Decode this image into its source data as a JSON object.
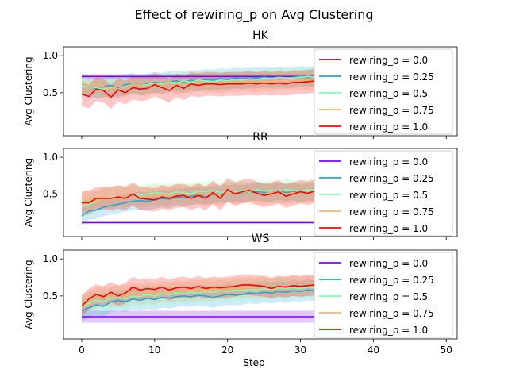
{
  "figure": {
    "title": "Effect of rewiring_p on  Avg Clustering",
    "xlabel": "Step"
  },
  "legend_labels": [
    "rewiring_p = 0.0",
    "rewiring_p = 0.25",
    "rewiring_p = 0.5",
    "rewiring_p = 0.75",
    "rewiring_p = 1.0"
  ],
  "series_colors": [
    "#8000ff",
    "#1ca8e0",
    "#80ffb4",
    "#ffb360",
    "#ff0000"
  ],
  "chart_data": [
    {
      "type": "line",
      "title": "HK",
      "xlabel": "",
      "ylabel": "Avg Clustering",
      "xlim": [
        -2.5,
        51.5
      ],
      "ylim": [
        0.0,
        1.0
      ],
      "xticks": [
        0,
        10,
        20,
        30,
        40,
        50
      ],
      "yticks": [
        0.5,
        1.0
      ],
      "ytick_labels": [
        "0.5",
        "1.0"
      ],
      "legend_position": "right",
      "x": [
        0,
        1,
        2,
        3,
        4,
        5,
        6,
        7,
        8,
        9,
        10,
        11,
        12,
        13,
        14,
        15,
        16,
        17,
        18,
        19,
        20,
        21,
        22,
        23,
        24,
        25,
        26,
        27,
        28,
        29,
        30,
        31,
        32
      ],
      "series": [
        {
          "name": "rewiring_p = 0.0",
          "values": [
            0.72,
            0.72,
            0.72,
            0.72,
            0.72,
            0.72,
            0.72,
            0.72,
            0.72,
            0.72,
            0.72,
            0.72,
            0.72,
            0.72,
            0.72,
            0.72,
            0.72,
            0.72,
            0.72,
            0.72,
            0.72,
            0.72,
            0.72,
            0.72,
            0.72,
            0.72,
            0.72,
            0.72,
            0.72,
            0.72,
            0.72,
            0.72,
            0.72
          ],
          "band": 0.03
        },
        {
          "name": "rewiring_p = 0.25",
          "values": [
            0.62,
            0.58,
            0.56,
            0.58,
            0.6,
            0.57,
            0.61,
            0.63,
            0.6,
            0.62,
            0.64,
            0.63,
            0.65,
            0.66,
            0.64,
            0.67,
            0.66,
            0.68,
            0.67,
            0.69,
            0.68,
            0.7,
            0.69,
            0.7,
            0.7,
            0.71,
            0.7,
            0.71,
            0.7,
            0.71,
            0.72,
            0.71,
            0.72
          ],
          "band": 0.14
        },
        {
          "name": "rewiring_p = 0.5",
          "values": [
            0.6,
            0.58,
            0.57,
            0.55,
            0.57,
            0.59,
            0.58,
            0.62,
            0.6,
            0.61,
            0.63,
            0.62,
            0.65,
            0.63,
            0.66,
            0.64,
            0.67,
            0.66,
            0.65,
            0.67,
            0.66,
            0.68,
            0.67,
            0.69,
            0.68,
            0.7,
            0.69,
            0.71,
            0.7,
            0.7,
            0.71,
            0.72,
            0.71
          ],
          "band": 0.12
        },
        {
          "name": "rewiring_p = 0.75",
          "values": [
            0.62,
            0.6,
            0.63,
            0.58,
            0.55,
            0.59,
            0.57,
            0.62,
            0.6,
            0.58,
            0.62,
            0.6,
            0.64,
            0.61,
            0.63,
            0.62,
            0.65,
            0.63,
            0.64,
            0.62,
            0.65,
            0.64,
            0.66,
            0.65,
            0.64,
            0.66,
            0.65,
            0.67,
            0.66,
            0.68,
            0.67,
            0.66,
            0.68
          ],
          "band": 0.13
        },
        {
          "name": "rewiring_p = 1.0",
          "values": [
            0.48,
            0.45,
            0.55,
            0.53,
            0.44,
            0.54,
            0.5,
            0.57,
            0.55,
            0.56,
            0.61,
            0.57,
            0.53,
            0.6,
            0.56,
            0.62,
            0.6,
            0.62,
            0.62,
            0.61,
            0.62,
            0.62,
            0.62,
            0.63,
            0.62,
            0.63,
            0.62,
            0.63,
            0.62,
            0.64,
            0.64,
            0.65,
            0.66
          ],
          "band": 0.16
        }
      ]
    },
    {
      "type": "line",
      "title": "RR",
      "xlabel": "",
      "ylabel": "Avg Clustering",
      "xlim": [
        -2.5,
        51.5
      ],
      "ylim": [
        0.0,
        1.0
      ],
      "xticks": [
        0,
        10,
        20,
        30,
        40,
        50
      ],
      "yticks": [
        0.5,
        1.0
      ],
      "ytick_labels": [
        "0.5",
        "1.0"
      ],
      "legend_position": "right",
      "x": [
        0,
        1,
        2,
        3,
        4,
        5,
        6,
        7,
        8,
        9,
        10,
        11,
        12,
        13,
        14,
        15,
        16,
        17,
        18,
        19,
        20,
        21,
        22,
        23,
        24,
        25,
        26,
        27,
        28,
        29,
        30,
        31,
        32
      ],
      "series": [
        {
          "name": "rewiring_p = 0.0",
          "values": [
            0.11,
            0.11,
            0.11,
            0.11,
            0.11,
            0.11,
            0.11,
            0.11,
            0.11,
            0.11,
            0.11,
            0.11,
            0.11,
            0.11,
            0.11,
            0.11,
            0.11,
            0.11,
            0.11,
            0.11,
            0.11,
            0.11,
            0.11,
            0.11,
            0.11,
            0.11,
            0.11,
            0.11,
            0.11,
            0.11,
            0.11,
            0.11,
            0.11
          ],
          "band": 0.01
        },
        {
          "name": "rewiring_p = 0.25",
          "values": [
            0.2,
            0.27,
            0.28,
            0.32,
            0.34,
            0.36,
            0.38,
            0.4,
            0.41,
            0.4,
            0.42,
            0.44,
            0.43,
            0.46,
            0.45,
            0.47,
            0.48,
            0.47,
            0.49,
            0.5,
            0.5,
            0.51,
            0.5,
            0.52,
            0.53,
            0.52,
            0.51,
            0.54,
            0.52,
            0.53,
            0.51,
            0.52,
            0.53
          ],
          "band": 0.12
        },
        {
          "name": "rewiring_p = 0.5",
          "values": [
            0.32,
            0.36,
            0.4,
            0.44,
            0.45,
            0.47,
            0.46,
            0.5,
            0.48,
            0.5,
            0.52,
            0.51,
            0.5,
            0.53,
            0.52,
            0.5,
            0.54,
            0.53,
            0.55,
            0.52,
            0.54,
            0.53,
            0.55,
            0.52,
            0.56,
            0.54,
            0.55,
            0.53,
            0.56,
            0.55,
            0.54,
            0.56,
            0.55
          ],
          "band": 0.14
        },
        {
          "name": "rewiring_p = 0.75",
          "values": [
            0.38,
            0.42,
            0.4,
            0.45,
            0.43,
            0.47,
            0.46,
            0.48,
            0.45,
            0.47,
            0.49,
            0.47,
            0.48,
            0.5,
            0.47,
            0.49,
            0.51,
            0.48,
            0.5,
            0.49,
            0.51,
            0.5,
            0.52,
            0.49,
            0.51,
            0.5,
            0.52,
            0.51,
            0.5,
            0.52,
            0.51,
            0.53,
            0.52
          ],
          "band": 0.14
        },
        {
          "name": "rewiring_p = 1.0",
          "values": [
            0.38,
            0.38,
            0.44,
            0.44,
            0.44,
            0.46,
            0.44,
            0.5,
            0.44,
            0.43,
            0.42,
            0.46,
            0.44,
            0.47,
            0.48,
            0.44,
            0.48,
            0.44,
            0.52,
            0.44,
            0.56,
            0.5,
            0.53,
            0.55,
            0.51,
            0.48,
            0.5,
            0.53,
            0.47,
            0.5,
            0.53,
            0.51,
            0.54
          ],
          "band": 0.16
        }
      ]
    },
    {
      "type": "line",
      "title": "WS",
      "xlabel": "Step",
      "ylabel": "Avg Clustering",
      "xlim": [
        -2.5,
        51.5
      ],
      "ylim": [
        0.0,
        1.0
      ],
      "xticks": [
        0,
        10,
        20,
        30,
        40,
        50
      ],
      "xtick_labels": [
        "0",
        "10",
        "20",
        "30",
        "40",
        "50"
      ],
      "yticks": [
        0.5,
        1.0
      ],
      "ytick_labels": [
        "0.5",
        "1.0"
      ],
      "legend_position": "right",
      "x": [
        0,
        1,
        2,
        3,
        4,
        5,
        6,
        7,
        8,
        9,
        10,
        11,
        12,
        13,
        14,
        15,
        16,
        17,
        18,
        19,
        20,
        21,
        22,
        23,
        24,
        25,
        26,
        27,
        28,
        29,
        30,
        31,
        32
      ],
      "series": [
        {
          "name": "rewiring_p = 0.0",
          "values": [
            0.22,
            0.22,
            0.22,
            0.22,
            0.22,
            0.22,
            0.22,
            0.22,
            0.22,
            0.22,
            0.22,
            0.22,
            0.22,
            0.22,
            0.22,
            0.22,
            0.22,
            0.22,
            0.22,
            0.22,
            0.22,
            0.22,
            0.22,
            0.22,
            0.22,
            0.22,
            0.22,
            0.22,
            0.22,
            0.22,
            0.22,
            0.22,
            0.22
          ],
          "band": 0.08
        },
        {
          "name": "rewiring_p = 0.25",
          "values": [
            0.3,
            0.34,
            0.38,
            0.36,
            0.42,
            0.44,
            0.42,
            0.46,
            0.44,
            0.47,
            0.45,
            0.48,
            0.47,
            0.49,
            0.5,
            0.49,
            0.51,
            0.5,
            0.48,
            0.5,
            0.52,
            0.51,
            0.52,
            0.54,
            0.53,
            0.55,
            0.54,
            0.56,
            0.55,
            0.57,
            0.56,
            0.58,
            0.57
          ],
          "band": 0.14
        },
        {
          "name": "rewiring_p = 0.5",
          "values": [
            0.36,
            0.4,
            0.44,
            0.42,
            0.47,
            0.48,
            0.46,
            0.5,
            0.49,
            0.52,
            0.5,
            0.53,
            0.52,
            0.54,
            0.53,
            0.55,
            0.54,
            0.56,
            0.55,
            0.57,
            0.56,
            0.58,
            0.57,
            0.59,
            0.58,
            0.6,
            0.59,
            0.61,
            0.6,
            0.61,
            0.6,
            0.62,
            0.61
          ],
          "band": 0.14
        },
        {
          "name": "rewiring_p = 0.75",
          "values": [
            0.4,
            0.44,
            0.47,
            0.5,
            0.48,
            0.52,
            0.5,
            0.54,
            0.52,
            0.55,
            0.53,
            0.56,
            0.55,
            0.57,
            0.56,
            0.58,
            0.57,
            0.59,
            0.58,
            0.6,
            0.59,
            0.61,
            0.6,
            0.62,
            0.61,
            0.63,
            0.62,
            0.63,
            0.62,
            0.64,
            0.63,
            0.64,
            0.63
          ],
          "band": 0.14
        },
        {
          "name": "rewiring_p = 1.0",
          "values": [
            0.36,
            0.46,
            0.52,
            0.49,
            0.55,
            0.5,
            0.54,
            0.62,
            0.58,
            0.6,
            0.59,
            0.62,
            0.58,
            0.61,
            0.62,
            0.6,
            0.63,
            0.6,
            0.62,
            0.61,
            0.62,
            0.63,
            0.65,
            0.65,
            0.64,
            0.63,
            0.6,
            0.63,
            0.62,
            0.64,
            0.63,
            0.64,
            0.65
          ],
          "band": 0.14
        }
      ]
    }
  ]
}
